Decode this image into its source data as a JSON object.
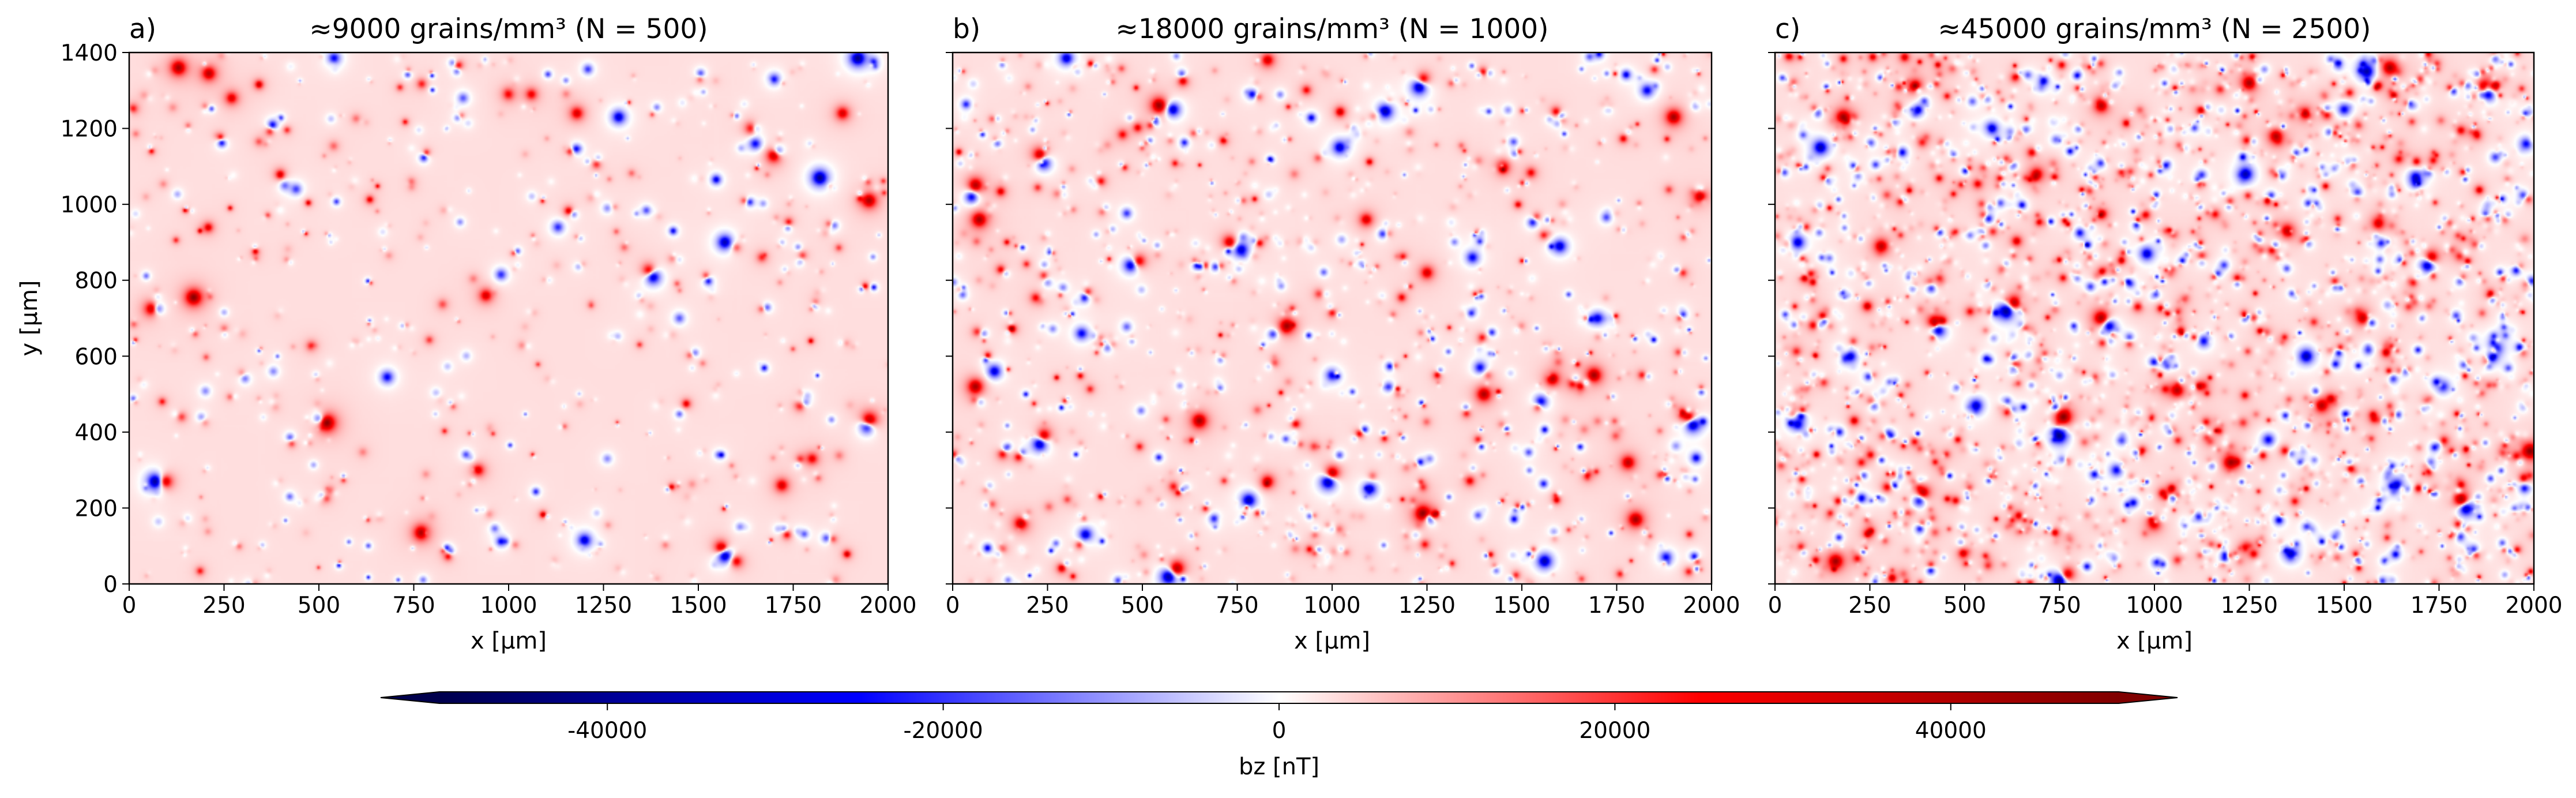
{
  "chart_data": {
    "type": "heatmap",
    "colormap": "seismic",
    "panels": [
      {
        "letter": "a)",
        "title": "≈9000 grains/mm³ (N = 500)",
        "xlabel": "x [μm]",
        "ylabel": "y [μm]",
        "xlim": [
          0,
          2000
        ],
        "ylim": [
          0,
          1400
        ],
        "xticks": [
          0,
          250,
          500,
          750,
          1000,
          1250,
          1500,
          1750,
          2000
        ],
        "yticks": [
          0,
          200,
          400,
          600,
          800,
          1000,
          1200,
          1400
        ],
        "show_yticklabels": true,
        "grains": 500,
        "sources": [
          {
            "x": 70,
            "y": 270,
            "v": -50000
          },
          {
            "x": 95,
            "y": 270,
            "v": 40000
          },
          {
            "x": 75,
            "y": 725,
            "v": -30000
          },
          {
            "x": 60,
            "y": 725,
            "v": 40000
          },
          {
            "x": 170,
            "y": 755,
            "v": 45000
          },
          {
            "x": 520,
            "y": 425,
            "v": 50000
          },
          {
            "x": 500,
            "y": 435,
            "v": -28000
          },
          {
            "x": 680,
            "y": 545,
            "v": -30000
          },
          {
            "x": 770,
            "y": 135,
            "v": 40000
          },
          {
            "x": 980,
            "y": 815,
            "v": -25000
          },
          {
            "x": 1200,
            "y": 115,
            "v": -35000
          },
          {
            "x": 1260,
            "y": 330,
            "v": -15000
          },
          {
            "x": 1380,
            "y": 810,
            "v": -45000
          },
          {
            "x": 1370,
            "y": 825,
            "v": 38000
          },
          {
            "x": 1570,
            "y": 900,
            "v": -40000
          },
          {
            "x": 1570,
            "y": 75,
            "v": -48000
          },
          {
            "x": 1560,
            "y": 95,
            "v": 40000
          },
          {
            "x": 1600,
            "y": 60,
            "v": 30000
          },
          {
            "x": 1700,
            "y": 1130,
            "v": 42000
          },
          {
            "x": 1710,
            "y": 1140,
            "v": -30000
          },
          {
            "x": 1820,
            "y": 1070,
            "v": -45000
          },
          {
            "x": 1880,
            "y": 1240,
            "v": 30000
          },
          {
            "x": 1950,
            "y": 430,
            "v": 50000
          },
          {
            "x": 1945,
            "y": 415,
            "v": -45000
          },
          {
            "x": 1950,
            "y": 1010,
            "v": 38000
          },
          {
            "x": 1920,
            "y": 1385,
            "v": -45000
          },
          {
            "x": 1640,
            "y": 1200,
            "v": 32000
          },
          {
            "x": 1650,
            "y": 1160,
            "v": -30000
          },
          {
            "x": 1650,
            "y": 1200,
            "v": -22000
          },
          {
            "x": 440,
            "y": 1040,
            "v": -22000
          },
          {
            "x": 410,
            "y": 1050,
            "v": -18000
          },
          {
            "x": 210,
            "y": 1345,
            "v": 35000
          },
          {
            "x": 270,
            "y": 1280,
            "v": 28000
          },
          {
            "x": 130,
            "y": 1360,
            "v": 40000
          },
          {
            "x": 920,
            "y": 300,
            "v": 28000
          },
          {
            "x": 1610,
            "y": 150,
            "v": -15000
          },
          {
            "x": 540,
            "y": 1385,
            "v": -30000
          },
          {
            "x": 1000,
            "y": 1290,
            "v": 25000
          },
          {
            "x": 1060,
            "y": 1290,
            "v": 25000
          },
          {
            "x": 880,
            "y": 1280,
            "v": -20000
          },
          {
            "x": 1180,
            "y": 1240,
            "v": 30000
          },
          {
            "x": 1290,
            "y": 1230,
            "v": -35000
          },
          {
            "x": 1260,
            "y": 990,
            "v": -15000
          },
          {
            "x": 1700,
            "y": 1330,
            "v": -25000
          },
          {
            "x": 1450,
            "y": 700,
            "v": -20000
          },
          {
            "x": 1800,
            "y": 330,
            "v": 25000
          },
          {
            "x": 1720,
            "y": 260,
            "v": 30000
          },
          {
            "x": 940,
            "y": 760,
            "v": 30000
          },
          {
            "x": 1130,
            "y": 940,
            "v": -25000
          },
          {
            "x": 380,
            "y": 560,
            "v": -15000
          }
        ]
      },
      {
        "letter": "b)",
        "title": "≈18000 grains/mm³ (N = 1000)",
        "xlabel": "x [μm]",
        "ylabel": "",
        "xlim": [
          0,
          2000
        ],
        "ylim": [
          0,
          1400
        ],
        "xticks": [
          0,
          250,
          500,
          750,
          1000,
          1250,
          1500,
          1750,
          2000
        ],
        "yticks": [
          0,
          200,
          400,
          600,
          800,
          1000,
          1200,
          1400
        ],
        "show_yticklabels": false,
        "grains": 1000,
        "sources": [
          {
            "x": 570,
            "y": 20,
            "v": -50000
          },
          {
            "x": 590,
            "y": 40,
            "v": 45000
          },
          {
            "x": 990,
            "y": 270,
            "v": -50000
          },
          {
            "x": 1000,
            "y": 290,
            "v": 45000
          },
          {
            "x": 1240,
            "y": 185,
            "v": 48000
          },
          {
            "x": 1260,
            "y": 170,
            "v": -30000
          },
          {
            "x": 230,
            "y": 370,
            "v": -45000
          },
          {
            "x": 240,
            "y": 390,
            "v": 40000
          },
          {
            "x": 230,
            "y": 1130,
            "v": 40000
          },
          {
            "x": 240,
            "y": 1110,
            "v": -40000
          },
          {
            "x": 545,
            "y": 1260,
            "v": 45000
          },
          {
            "x": 580,
            "y": 1250,
            "v": -40000
          },
          {
            "x": 1140,
            "y": 1245,
            "v": -40000
          },
          {
            "x": 1230,
            "y": 1310,
            "v": -45000
          },
          {
            "x": 1240,
            "y": 1330,
            "v": 35000
          },
          {
            "x": 1900,
            "y": 1230,
            "v": 40000
          },
          {
            "x": 1950,
            "y": 420,
            "v": -45000
          },
          {
            "x": 1940,
            "y": 440,
            "v": 40000
          },
          {
            "x": 1600,
            "y": 890,
            "v": -35000
          },
          {
            "x": 1700,
            "y": 700,
            "v": -30000
          },
          {
            "x": 1690,
            "y": 550,
            "v": 40000
          },
          {
            "x": 1580,
            "y": 540,
            "v": 35000
          },
          {
            "x": 1550,
            "y": 480,
            "v": -35000
          },
          {
            "x": 1390,
            "y": 570,
            "v": -30000
          },
          {
            "x": 1400,
            "y": 500,
            "v": 38000
          },
          {
            "x": 880,
            "y": 680,
            "v": 40000
          },
          {
            "x": 730,
            "y": 900,
            "v": 35000
          },
          {
            "x": 760,
            "y": 880,
            "v": -40000
          },
          {
            "x": 470,
            "y": 840,
            "v": -40000
          },
          {
            "x": 490,
            "y": 850,
            "v": 35000
          },
          {
            "x": 340,
            "y": 660,
            "v": -30000
          },
          {
            "x": 70,
            "y": 960,
            "v": 40000
          },
          {
            "x": 50,
            "y": 1020,
            "v": -35000
          },
          {
            "x": 60,
            "y": 1050,
            "v": 40000
          },
          {
            "x": 60,
            "y": 520,
            "v": 40000
          },
          {
            "x": 110,
            "y": 560,
            "v": -35000
          },
          {
            "x": 180,
            "y": 160,
            "v": 35000
          },
          {
            "x": 350,
            "y": 130,
            "v": -35000
          },
          {
            "x": 780,
            "y": 220,
            "v": -40000
          },
          {
            "x": 830,
            "y": 270,
            "v": 30000
          },
          {
            "x": 1100,
            "y": 250,
            "v": -35000
          },
          {
            "x": 1560,
            "y": 60,
            "v": -40000
          },
          {
            "x": 1800,
            "y": 170,
            "v": 40000
          },
          {
            "x": 1880,
            "y": 70,
            "v": -30000
          },
          {
            "x": 1970,
            "y": 1020,
            "v": 35000
          },
          {
            "x": 1830,
            "y": 1300,
            "v": -30000
          },
          {
            "x": 1020,
            "y": 1150,
            "v": -35000
          },
          {
            "x": 1450,
            "y": 1100,
            "v": 30000
          },
          {
            "x": 1370,
            "y": 860,
            "v": -30000
          },
          {
            "x": 1250,
            "y": 820,
            "v": 30000
          },
          {
            "x": 650,
            "y": 430,
            "v": 40000
          },
          {
            "x": 1000,
            "y": 550,
            "v": -30000
          },
          {
            "x": 1780,
            "y": 320,
            "v": 35000
          },
          {
            "x": 830,
            "y": 1380,
            "v": 30000
          },
          {
            "x": 300,
            "y": 1385,
            "v": -35000
          },
          {
            "x": 1090,
            "y": 960,
            "v": 30000
          }
        ]
      },
      {
        "letter": "c)",
        "title": "≈45000 grains/mm³ (N = 2500)",
        "xlabel": "x [μm]",
        "ylabel": "",
        "xlim": [
          0,
          2000
        ],
        "ylim": [
          0,
          1400
        ],
        "xticks": [
          0,
          250,
          500,
          750,
          1000,
          1250,
          1500,
          1750,
          2000
        ],
        "yticks": [
          0,
          200,
          400,
          600,
          800,
          1000,
          1200,
          1400
        ],
        "show_yticklabels": false,
        "grains": 2500,
        "sources": [
          {
            "x": 610,
            "y": 720,
            "v": -50000
          },
          {
            "x": 630,
            "y": 740,
            "v": 45000
          },
          {
            "x": 750,
            "y": 10,
            "v": -50000
          },
          {
            "x": 770,
            "y": 25,
            "v": 40000
          },
          {
            "x": 760,
            "y": 440,
            "v": 48000
          },
          {
            "x": 750,
            "y": 390,
            "v": -45000
          },
          {
            "x": 1820,
            "y": 200,
            "v": -50000
          },
          {
            "x": 1810,
            "y": 220,
            "v": 50000
          },
          {
            "x": 1870,
            "y": 1310,
            "v": 45000
          },
          {
            "x": 1880,
            "y": 1290,
            "v": -40000
          },
          {
            "x": 860,
            "y": 700,
            "v": 45000
          },
          {
            "x": 880,
            "y": 680,
            "v": -40000
          },
          {
            "x": 1720,
            "y": 840,
            "v": -45000
          },
          {
            "x": 1730,
            "y": 860,
            "v": 40000
          },
          {
            "x": 420,
            "y": 690,
            "v": 40000
          },
          {
            "x": 430,
            "y": 670,
            "v": -45000
          },
          {
            "x": 1990,
            "y": 350,
            "v": 45000
          },
          {
            "x": 1620,
            "y": 1360,
            "v": 40000
          },
          {
            "x": 1240,
            "y": 1080,
            "v": -40000
          },
          {
            "x": 1560,
            "y": 1350,
            "v": -40000
          },
          {
            "x": 1500,
            "y": 1250,
            "v": -30000
          },
          {
            "x": 180,
            "y": 1230,
            "v": 40000
          },
          {
            "x": 120,
            "y": 1150,
            "v": -40000
          },
          {
            "x": 370,
            "y": 1310,
            "v": 35000
          },
          {
            "x": 1200,
            "y": 320,
            "v": 38000
          },
          {
            "x": 1640,
            "y": 260,
            "v": -35000
          },
          {
            "x": 390,
            "y": 240,
            "v": 38000
          },
          {
            "x": 380,
            "y": 220,
            "v": -35000
          },
          {
            "x": 1350,
            "y": 930,
            "v": 35000
          },
          {
            "x": 1400,
            "y": 600,
            "v": -40000
          },
          {
            "x": 1060,
            "y": 510,
            "v": 35000
          },
          {
            "x": 530,
            "y": 470,
            "v": -35000
          },
          {
            "x": 160,
            "y": 60,
            "v": 40000
          },
          {
            "x": 1980,
            "y": 1160,
            "v": -30000
          },
          {
            "x": 1440,
            "y": 470,
            "v": 35000
          },
          {
            "x": 1320,
            "y": 1180,
            "v": 35000
          },
          {
            "x": 1690,
            "y": 1070,
            "v": -35000
          },
          {
            "x": 1250,
            "y": 1320,
            "v": 40000
          },
          {
            "x": 980,
            "y": 870,
            "v": -35000
          },
          {
            "x": 280,
            "y": 890,
            "v": 35000
          },
          {
            "x": 60,
            "y": 420,
            "v": -30000
          },
          {
            "x": 60,
            "y": 900,
            "v": -35000
          },
          {
            "x": 1130,
            "y": 640,
            "v": -30000
          },
          {
            "x": 1550,
            "y": 700,
            "v": 35000
          },
          {
            "x": 1900,
            "y": 620,
            "v": -35000
          },
          {
            "x": 1000,
            "y": 160,
            "v": 35000
          },
          {
            "x": 1360,
            "y": 80,
            "v": -35000
          },
          {
            "x": 200,
            "y": 600,
            "v": -30000
          },
          {
            "x": 1400,
            "y": 1240,
            "v": 30000
          },
          {
            "x": 570,
            "y": 1200,
            "v": -30000
          },
          {
            "x": 860,
            "y": 1260,
            "v": 35000
          },
          {
            "x": 1760,
            "y": 520,
            "v": -30000
          },
          {
            "x": 1300,
            "y": 380,
            "v": -30000
          },
          {
            "x": 1590,
            "y": 950,
            "v": 30000
          },
          {
            "x": 900,
            "y": 300,
            "v": -30000
          },
          {
            "x": 690,
            "y": 1080,
            "v": 30000
          }
        ]
      }
    ],
    "colorbar": {
      "label": "bz [nT]",
      "vmin": -50000,
      "vmax": 50000,
      "ticks": [
        -40000,
        -20000,
        0,
        20000,
        40000
      ],
      "extend": "both",
      "orientation": "horizontal"
    }
  }
}
